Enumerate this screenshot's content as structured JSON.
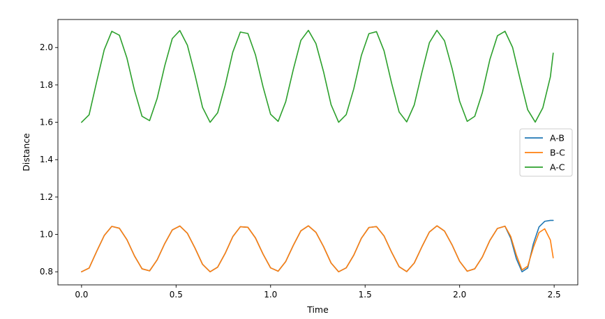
{
  "chart_data": {
    "type": "line",
    "title": "",
    "xlabel": "Time",
    "ylabel": "Distance",
    "xlim": [
      -0.125,
      2.625
    ],
    "ylim": [
      0.73,
      2.15
    ],
    "xticks": [
      0.0,
      0.5,
      1.0,
      1.5,
      2.0,
      2.5
    ],
    "xtick_labels": [
      "0.0",
      "0.5",
      "1.0",
      "1.5",
      "2.0",
      "2.5"
    ],
    "yticks": [
      0.8,
      1.0,
      1.2,
      1.4,
      1.6,
      1.8,
      2.0
    ],
    "ytick_labels": [
      "0.8",
      "1.0",
      "1.2",
      "1.4",
      "1.6",
      "1.8",
      "2.0"
    ],
    "grid": false,
    "legend_position": "center-right",
    "series": [
      {
        "name": "A-B",
        "color": "#1f77b4",
        "x": [
          0.0,
          0.04,
          0.08,
          0.12,
          0.16,
          0.2,
          0.24,
          0.28,
          0.32,
          0.36,
          0.4,
          0.44,
          0.48,
          0.52,
          0.56,
          0.6,
          0.64,
          0.68,
          0.72,
          0.76,
          0.8,
          0.84,
          0.88,
          0.92,
          0.96,
          1.0,
          1.04,
          1.08,
          1.12,
          1.16,
          1.2,
          1.24,
          1.28,
          1.32,
          1.36,
          1.4,
          1.44,
          1.48,
          1.52,
          1.56,
          1.6,
          1.64,
          1.68,
          1.72,
          1.76,
          1.8,
          1.84,
          1.88,
          1.92,
          1.96,
          2.0,
          2.04,
          2.08,
          2.12,
          2.16,
          2.2,
          2.24,
          2.27,
          2.3,
          2.33,
          2.36,
          2.39,
          2.42,
          2.45,
          2.48,
          2.495
        ],
        "y": [
          0.8,
          0.82,
          0.909,
          0.994,
          1.043,
          1.033,
          0.972,
          0.885,
          0.816,
          0.805,
          0.864,
          0.951,
          1.024,
          1.045,
          1.006,
          0.927,
          0.84,
          0.8,
          0.825,
          0.899,
          0.988,
          1.041,
          1.038,
          0.981,
          0.895,
          0.821,
          0.803,
          0.855,
          0.941,
          1.019,
          1.046,
          1.011,
          0.935,
          0.847,
          0.8,
          0.821,
          0.889,
          0.979,
          1.037,
          1.042,
          0.992,
          0.905,
          0.827,
          0.801,
          0.847,
          0.933,
          1.013,
          1.046,
          1.018,
          0.944,
          0.856,
          0.803,
          0.816,
          0.879,
          0.968,
          1.032,
          1.044,
          0.98,
          0.87,
          0.8,
          0.82,
          0.95,
          1.04,
          1.07,
          1.075,
          1.075
        ]
      },
      {
        "name": "B-C",
        "color": "#ff7f0e",
        "x": [
          0.0,
          0.04,
          0.08,
          0.12,
          0.16,
          0.2,
          0.24,
          0.28,
          0.32,
          0.36,
          0.4,
          0.44,
          0.48,
          0.52,
          0.56,
          0.6,
          0.64,
          0.68,
          0.72,
          0.76,
          0.8,
          0.84,
          0.88,
          0.92,
          0.96,
          1.0,
          1.04,
          1.08,
          1.12,
          1.16,
          1.2,
          1.24,
          1.28,
          1.32,
          1.36,
          1.4,
          1.44,
          1.48,
          1.52,
          1.56,
          1.6,
          1.64,
          1.68,
          1.72,
          1.76,
          1.8,
          1.84,
          1.88,
          1.92,
          1.96,
          2.0,
          2.04,
          2.08,
          2.12,
          2.16,
          2.2,
          2.24,
          2.27,
          2.3,
          2.33,
          2.36,
          2.39,
          2.42,
          2.45,
          2.48,
          2.495
        ],
        "y": [
          0.8,
          0.82,
          0.909,
          0.994,
          1.043,
          1.033,
          0.972,
          0.885,
          0.816,
          0.805,
          0.864,
          0.951,
          1.024,
          1.045,
          1.006,
          0.927,
          0.84,
          0.8,
          0.825,
          0.899,
          0.988,
          1.041,
          1.038,
          0.981,
          0.895,
          0.821,
          0.803,
          0.855,
          0.941,
          1.019,
          1.046,
          1.011,
          0.935,
          0.847,
          0.8,
          0.821,
          0.889,
          0.979,
          1.037,
          1.042,
          0.992,
          0.905,
          0.827,
          0.801,
          0.847,
          0.933,
          1.013,
          1.046,
          1.018,
          0.944,
          0.856,
          0.803,
          0.816,
          0.879,
          0.968,
          1.032,
          1.044,
          0.99,
          0.89,
          0.81,
          0.83,
          0.93,
          1.01,
          1.03,
          0.97,
          0.875
        ]
      },
      {
        "name": "A-C",
        "color": "#2ca02c",
        "x": [
          0.0,
          0.04,
          0.08,
          0.12,
          0.16,
          0.2,
          0.24,
          0.28,
          0.32,
          0.36,
          0.4,
          0.44,
          0.48,
          0.52,
          0.56,
          0.6,
          0.64,
          0.68,
          0.72,
          0.76,
          0.8,
          0.84,
          0.88,
          0.92,
          0.96,
          1.0,
          1.04,
          1.08,
          1.12,
          1.16,
          1.2,
          1.24,
          1.28,
          1.32,
          1.36,
          1.4,
          1.44,
          1.48,
          1.52,
          1.56,
          1.6,
          1.64,
          1.68,
          1.72,
          1.76,
          1.8,
          1.84,
          1.88,
          1.92,
          1.96,
          2.0,
          2.04,
          2.08,
          2.12,
          2.16,
          2.2,
          2.24,
          2.28,
          2.32,
          2.36,
          2.4,
          2.44,
          2.48,
          2.495
        ],
        "y": [
          1.6,
          1.64,
          1.817,
          1.988,
          2.087,
          2.066,
          1.944,
          1.771,
          1.632,
          1.609,
          1.728,
          1.902,
          2.048,
          2.091,
          2.012,
          1.854,
          1.68,
          1.6,
          1.651,
          1.799,
          1.975,
          2.083,
          2.075,
          1.961,
          1.79,
          1.643,
          1.605,
          1.71,
          1.882,
          2.038,
          2.092,
          2.021,
          1.871,
          1.694,
          1.6,
          1.641,
          1.779,
          1.957,
          2.074,
          2.085,
          1.983,
          1.81,
          1.655,
          1.602,
          1.693,
          1.865,
          2.026,
          2.092,
          2.036,
          1.888,
          1.712,
          1.605,
          1.632,
          1.758,
          1.936,
          2.063,
          2.087,
          2.001,
          1.83,
          1.667,
          1.601,
          1.677,
          1.843,
          1.97
        ]
      }
    ]
  }
}
